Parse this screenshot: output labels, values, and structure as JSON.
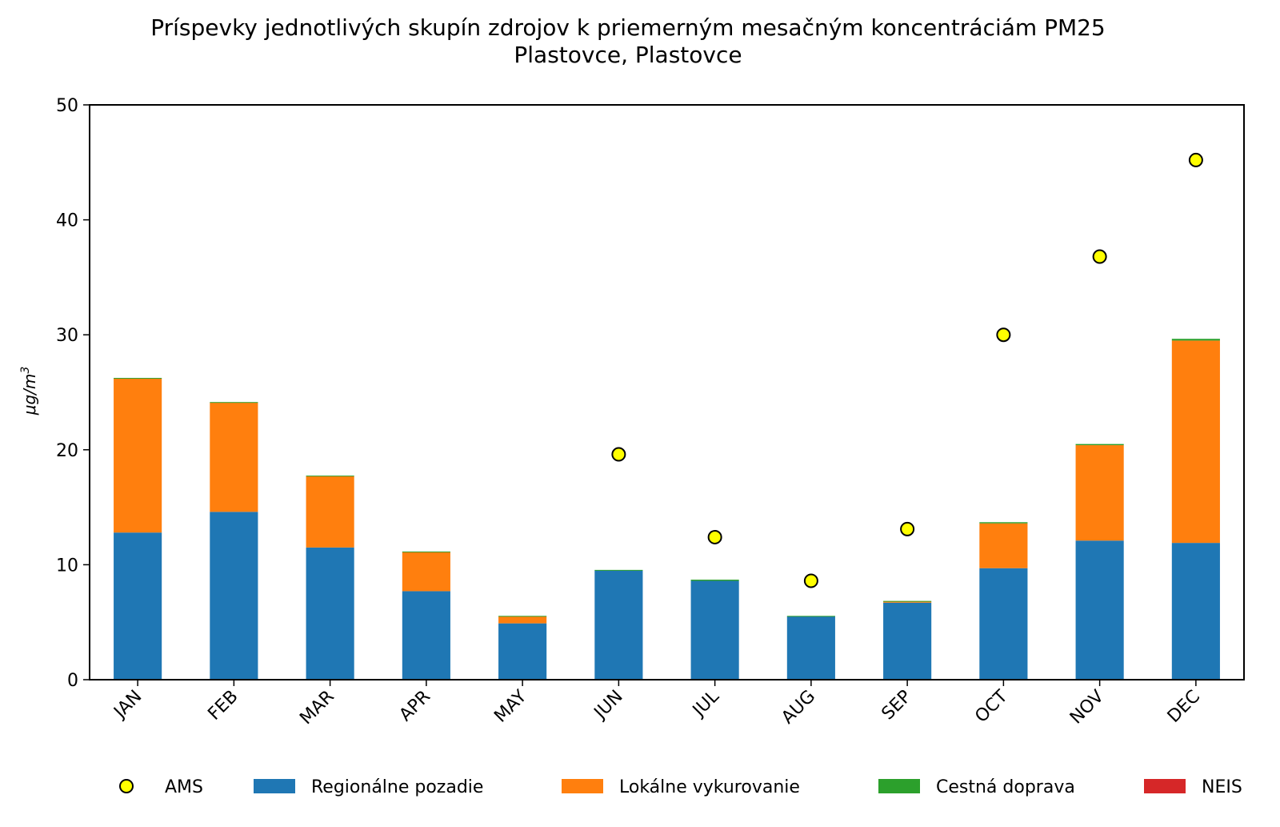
{
  "chart_data": {
    "type": "bar",
    "stacked": true,
    "title_line1": "Príspevky jednotlivých skupín zdrojov k priemerným mesačným koncentráciám PM25",
    "title_line2": "Plastovce, Plastovce",
    "ylabel": "μg/m",
    "ylabel_sup": "3",
    "xlabel": "",
    "ylim": [
      0,
      50
    ],
    "yticks": [
      0,
      10,
      20,
      30,
      40,
      50
    ],
    "categories": [
      "JAN",
      "FEB",
      "MAR",
      "APR",
      "MAY",
      "JUN",
      "JUL",
      "AUG",
      "SEP",
      "OCT",
      "NOV",
      "DEC"
    ],
    "series": [
      {
        "name": "Regionálne pozadie",
        "color": "#1f77b4",
        "values": [
          12.8,
          14.6,
          11.5,
          7.7,
          4.9,
          9.5,
          8.6,
          5.5,
          6.7,
          9.7,
          12.1,
          11.9
        ]
      },
      {
        "name": "Lokálne vykurovanie",
        "color": "#ff7f0e",
        "values": [
          13.4,
          9.5,
          6.2,
          3.4,
          0.6,
          0.0,
          0.0,
          0.0,
          0.1,
          3.9,
          8.3,
          17.6
        ]
      },
      {
        "name": "Cestná doprava",
        "color": "#2ca02c",
        "values": [
          0.05,
          0.05,
          0.05,
          0.05,
          0.05,
          0.05,
          0.1,
          0.05,
          0.05,
          0.1,
          0.1,
          0.15
        ]
      },
      {
        "name": "NEIS",
        "color": "#d62728",
        "values": [
          0,
          0,
          0,
          0,
          0,
          0,
          0,
          0,
          0,
          0,
          0,
          0
        ]
      }
    ],
    "points": {
      "name": "AMS",
      "color": "#ffff00",
      "values": [
        null,
        null,
        null,
        null,
        null,
        19.6,
        12.4,
        8.6,
        13.1,
        30.0,
        36.8,
        45.2
      ]
    },
    "legend": {
      "position": "bottom",
      "items": [
        {
          "name": "AMS",
          "kind": "marker",
          "color": "#ffff00"
        },
        {
          "name": "Regionálne pozadie",
          "kind": "patch",
          "color": "#1f77b4"
        },
        {
          "name": "Lokálne vykurovanie",
          "kind": "patch",
          "color": "#ff7f0e"
        },
        {
          "name": "Cestná doprava",
          "kind": "patch",
          "color": "#2ca02c"
        },
        {
          "name": "NEIS",
          "kind": "patch",
          "color": "#d62728"
        }
      ]
    }
  }
}
